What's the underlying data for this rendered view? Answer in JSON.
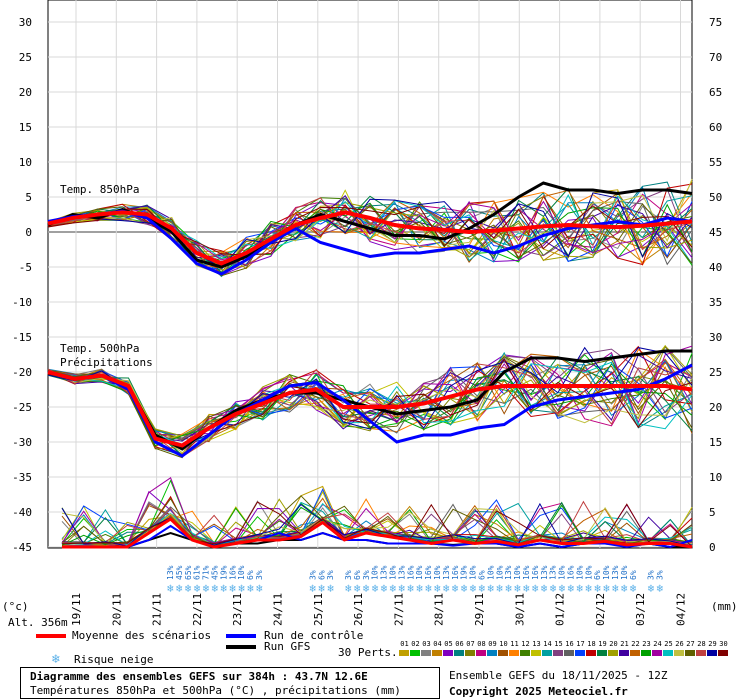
{
  "chart_data": {
    "type": "line",
    "left_axis_ticks": [
      30,
      25,
      20,
      15,
      10,
      5,
      0,
      -5,
      -10,
      -15,
      -20,
      -25,
      -30,
      -35,
      -40,
      -45
    ],
    "right_axis_ticks": [
      75,
      70,
      65,
      60,
      55,
      50,
      45,
      40,
      35,
      30,
      25,
      20,
      15,
      10,
      5,
      0
    ],
    "left_unit": "(°c)",
    "right_unit": "(mm)",
    "x_labels": [
      "19/11",
      "20/11",
      "21/11",
      "22/11",
      "23/11",
      "24/11",
      "25/11",
      "26/11",
      "27/11",
      "28/11",
      "29/11",
      "30/11",
      "01/12",
      "02/12",
      "03/12",
      "04/12"
    ],
    "label_850": "Temp. 850hPa",
    "label_500": "Temp. 500hPa",
    "label_precip": "Précipitations",
    "snow_risk_pct": [
      "13%",
      "45%",
      "65%",
      "61%",
      "71%",
      "45%",
      "19%",
      "16%",
      "10%",
      "6%",
      "3%",
      "",
      "",
      "",
      "",
      "",
      "3%",
      "6%",
      "3%",
      "",
      "3%",
      "6%",
      "3%",
      "10%",
      "13%",
      "10%",
      "13%",
      "16%",
      "10%",
      "16%",
      "10%",
      "13%",
      "16%",
      "19%",
      "10%",
      "6%",
      "10%",
      "10%",
      "13%",
      "10%",
      "16%",
      "16%",
      "13%",
      "13%",
      "10%",
      "16%",
      "10%",
      "10%",
      "6%",
      "10%",
      "13%",
      "10%",
      "6%",
      "",
      "3%",
      "3%"
    ],
    "series": [
      {
        "name": "Moyenne des scénarios",
        "color": "#ff0000",
        "t850": [
          1.2,
          2.0,
          2.5,
          2.8,
          2.5,
          0.5,
          -3.0,
          -4.5,
          -3.0,
          -1.0,
          1.0,
          2.0,
          2.8,
          2.0,
          1.0,
          0.5,
          0.3,
          0.0,
          0.2,
          0.5,
          0.8,
          1.0,
          0.8,
          0.7,
          0.9,
          1.2,
          1.5
        ],
        "t500": [
          -20,
          -21,
          -20.5,
          -22,
          -29.5,
          -30.5,
          -28,
          -26,
          -24.5,
          -23,
          -22.5,
          -25,
          -25,
          -25,
          -24.5,
          -23.5,
          -22.5,
          -22,
          -22,
          -22,
          -22,
          -22,
          -22,
          -22,
          -22.5
        ],
        "precip": [
          0,
          0,
          0,
          0,
          2,
          4,
          1,
          0,
          0.5,
          1,
          1,
          1.5,
          3.5,
          1,
          2,
          1.5,
          1,
          0.5,
          1,
          0.5,
          0.8,
          0.3,
          1,
          0.5,
          0.5,
          0.8,
          0.3,
          0.5,
          0.5,
          0
        ]
      },
      {
        "name": "Run de contrôle",
        "color": "#0000ff",
        "t850": [
          1.5,
          2.2,
          2.5,
          3.0,
          2.0,
          -1.0,
          -4.5,
          -6.0,
          -4.0,
          -1.5,
          0.5,
          -1.5,
          -2.5,
          -3.5,
          -3.0,
          -3.0,
          -2.5,
          -2.0,
          -3.0,
          -2.0,
          -0.5,
          0.5,
          1.0,
          1.5,
          1.0,
          2.0,
          1.5
        ],
        "t500": [
          -20,
          -21,
          -20.5,
          -22.5,
          -30,
          -32,
          -29,
          -26,
          -24,
          -22,
          -21.5,
          -24,
          -27,
          -30,
          -29,
          -29,
          -28,
          -27.5,
          -25,
          -24,
          -23.5,
          -23,
          -22.5,
          -21,
          -19
        ],
        "precip": [
          0,
          0,
          0,
          0,
          1,
          3,
          1,
          0,
          0.5,
          1,
          2,
          1,
          2,
          1,
          1,
          0.5,
          0.5,
          0.5,
          0.2,
          0.5,
          0.5,
          0,
          0.5,
          0,
          0.5,
          0.5,
          0,
          0.5,
          0,
          1
        ]
      },
      {
        "name": "Run GFS",
        "color": "#000000",
        "t850": [
          1.0,
          2.5,
          2.0,
          3.2,
          2.0,
          0.0,
          -4.0,
          -5.0,
          -3.5,
          -1.0,
          1.0,
          2.5,
          1.5,
          0.5,
          -0.5,
          -0.5,
          -1.0,
          0.5,
          2.5,
          5.0,
          7.0,
          6.0,
          6.0,
          5.5,
          6.0,
          6.0,
          5.5
        ],
        "t500": [
          -20,
          -21,
          -20.5,
          -22,
          -29,
          -31,
          -28,
          -25.5,
          -24,
          -23,
          -23,
          -24,
          -25,
          -26,
          -25.5,
          -25,
          -24,
          -20,
          -18,
          -18,
          -18.5,
          -18,
          -17.5,
          -17,
          -17
        ],
        "precip": [
          0,
          0,
          0,
          0,
          1,
          2,
          1,
          0,
          0.5,
          0.5,
          1,
          1,
          2,
          1,
          1,
          0.5,
          0.5,
          0.5,
          0.3,
          0.5,
          0.5,
          0,
          0.5,
          0,
          0.5,
          0.5,
          0.3,
          0.5,
          0,
          0
        ]
      }
    ],
    "legend_mean": "Moyenne des scénarios",
    "legend_control": "Run de contrôle",
    "legend_gfs": "Run GFS",
    "legend_snow": "Risque neige",
    "legend_perts": "30 Perts.",
    "perturbation_numbers": [
      "01",
      "02",
      "03",
      "04",
      "05",
      "06",
      "07",
      "08",
      "09",
      "10",
      "11",
      "12",
      "13",
      "14",
      "15",
      "16",
      "17",
      "18",
      "19",
      "20",
      "21",
      "22",
      "23",
      "24",
      "25",
      "26",
      "27",
      "28",
      "29",
      "30"
    ],
    "perturbation_colors": [
      "#c0a000",
      "#00c000",
      "#808080",
      "#c08000",
      "#8000c0",
      "#008080",
      "#808000",
      "#c00080",
      "#0080c0",
      "#a05000",
      "#ff8000",
      "#408000",
      "#c0c000",
      "#00a0a0",
      "#804080",
      "#606060",
      "#0040ff",
      "#c00000",
      "#008040",
      "#a0a000",
      "#4000a0",
      "#c06000",
      "#00a000",
      "#a000a0",
      "#00c0c0",
      "#c0c040",
      "#606000",
      "#c04040",
      "#0000a0",
      "#800000"
    ],
    "altitude": "Alt. 356m"
  },
  "footer": {
    "title": "Diagramme des ensembles GEFS sur 384h : 43.7N 12.6E",
    "subtitle": "Températures 850hPa et 500hPa (°C) , précipitations (mm)",
    "run_info": "Ensemble GEFS du 18/11/2025 - 12Z",
    "copyright": "Copyright 2025 Meteociel.fr"
  },
  "colors": {
    "zero_line": "#a0a0a0",
    "grid": "#d8d8d8",
    "snow_icon": "#5ab0e8",
    "snow_text": "#1e6fc8"
  }
}
